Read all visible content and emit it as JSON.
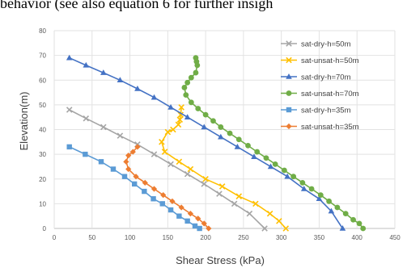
{
  "caption": "behavior (see also equation 6 for further insigh",
  "chart_data": {
    "type": "line",
    "title": "",
    "xlabel": "Shear Stress (kPa)",
    "ylabel": "Elevation(m)",
    "xlim": [
      0,
      450
    ],
    "ylim": [
      0,
      80
    ],
    "xticks": [
      0,
      50,
      100,
      150,
      200,
      250,
      300,
      350,
      400,
      450
    ],
    "yticks": [
      0,
      10,
      20,
      30,
      40,
      50,
      60,
      70,
      80
    ],
    "grid": true,
    "legend": "top-right",
    "series": [
      {
        "name": "sat-dry-h=50m",
        "color": "#a5a5a5",
        "marker": "x",
        "x": [
          20,
          42,
          65,
          87,
          110,
          132,
          154,
          176,
          198,
          218,
          238,
          258,
          278
        ],
        "y": [
          48,
          44.5,
          41,
          37.5,
          34,
          30,
          26,
          22,
          18,
          14,
          10,
          6,
          0
        ]
      },
      {
        "name": "sat-unsat-h=50m",
        "color": "#ffc000",
        "marker": "x",
        "x": [
          168,
          167,
          166,
          164,
          157,
          150,
          142,
          146,
          165,
          180,
          200,
          222,
          244,
          266,
          285,
          297,
          306
        ],
        "y": [
          49,
          46,
          44,
          42,
          40,
          39,
          35,
          31,
          27,
          24,
          20,
          17,
          13,
          10,
          6,
          3,
          0
        ]
      },
      {
        "name": "sat-dry-h=70m",
        "color": "#4472c4",
        "marker": "triangle",
        "x": [
          20,
          42,
          65,
          87,
          110,
          132,
          154,
          176,
          198,
          220,
          242,
          264,
          286,
          308,
          330,
          350,
          366,
          381
        ],
        "y": [
          69,
          66,
          63,
          60,
          56.5,
          53,
          49,
          45,
          41,
          37,
          33,
          29,
          25,
          21,
          16,
          12,
          7,
          0
        ]
      },
      {
        "name": "sat-unsat-h=70m",
        "color": "#70ad47",
        "marker": "circle",
        "x": [
          187,
          188,
          189,
          187,
          181,
          176,
          172,
          174,
          181,
          190,
          200,
          210,
          220,
          232,
          244,
          256,
          268,
          280,
          292,
          304,
          316,
          328,
          340,
          352,
          363,
          374,
          385,
          395,
          403,
          408
        ],
        "y": [
          69,
          67.5,
          66,
          63,
          61,
          59,
          57,
          54,
          51,
          48.5,
          46,
          43.5,
          41,
          38.5,
          36,
          33.5,
          31,
          28.5,
          26,
          23.5,
          21,
          18.5,
          16,
          13.5,
          11,
          8.5,
          6,
          3.5,
          2,
          0
        ]
      },
      {
        "name": "sat-dry-h=35m",
        "color": "#5b9bd5",
        "marker": "square",
        "x": [
          20,
          41,
          62,
          78,
          93,
          106,
          119,
          131,
          143,
          154,
          165,
          176,
          186,
          192
        ],
        "y": [
          33,
          30,
          27,
          24,
          21,
          18,
          15,
          12,
          10,
          7.5,
          5,
          3,
          1,
          0
        ]
      },
      {
        "name": "sat-unsat-h=35m",
        "color": "#ed7d31",
        "marker": "diamond",
        "x": [
          110,
          104,
          98,
          95,
          98,
          108,
          120,
          132,
          144,
          156,
          168,
          180,
          190,
          198,
          204
        ],
        "y": [
          33,
          31,
          29.5,
          27,
          24,
          21,
          18.5,
          16,
          13.5,
          11,
          8.5,
          6,
          4,
          2,
          0
        ]
      }
    ]
  }
}
